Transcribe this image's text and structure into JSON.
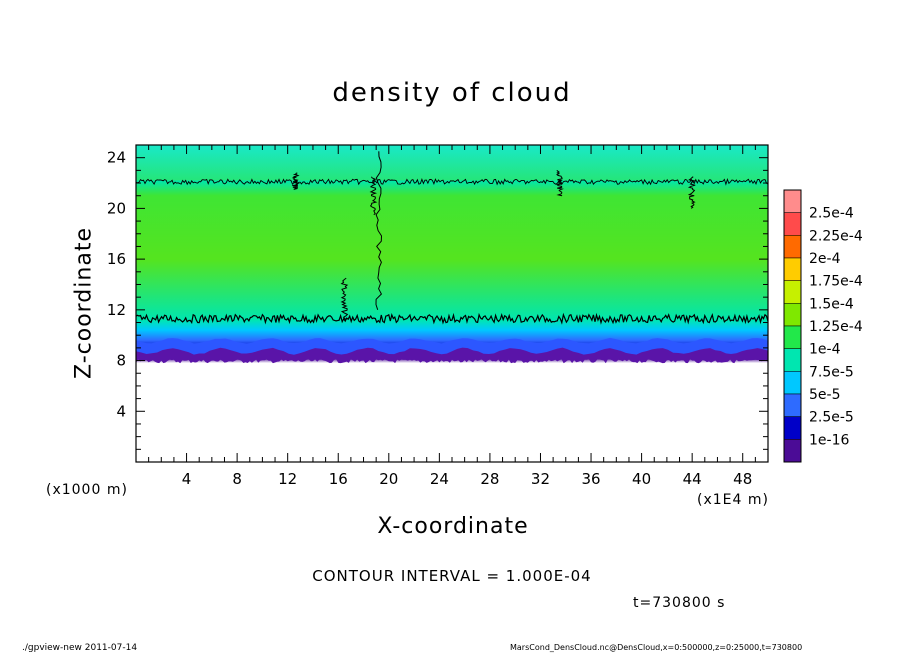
{
  "chart_data": {
    "type": "heatmap",
    "title": "density of cloud",
    "xlabel": "X-coordinate",
    "ylabel": "Z-coordinate",
    "x_unit": "(x1E4 m)",
    "y_unit": "(x1000 m)",
    "xlim": [
      0,
      50
    ],
    "ylim": [
      0,
      25
    ],
    "x_ticks": [
      4,
      8,
      12,
      16,
      20,
      24,
      28,
      32,
      36,
      40,
      44,
      48
    ],
    "y_ticks": [
      4,
      8,
      12,
      16,
      20,
      24
    ],
    "colorbar": {
      "labels": [
        "2.5e-4",
        "2.25e-4",
        "2e-4",
        "1.75e-4",
        "1.5e-4",
        "1.25e-4",
        "1e-4",
        "7.5e-5",
        "5e-5",
        "2.5e-5",
        "1e-16"
      ],
      "colors": [
        "#ff8c8c",
        "#ff4b4b",
        "#ff6a00",
        "#ffcc00",
        "#c6f000",
        "#7fe800",
        "#22e84a",
        "#00e6b0",
        "#00c8ff",
        "#2e6bff",
        "#0000c8",
        "#4b0c96"
      ]
    },
    "profile": [
      {
        "z": 0,
        "value": null
      },
      {
        "z": 7.8,
        "value": null
      },
      {
        "z": 8.2,
        "value": 1e-16
      },
      {
        "z": 8.9,
        "value": 2.5e-05
      },
      {
        "z": 9.6,
        "value": 5e-05
      },
      {
        "z": 10.4,
        "value": 7.5e-05
      },
      {
        "z": 11.2,
        "value": 0.0001
      },
      {
        "z": 16,
        "value": 0.000125
      },
      {
        "z": 21.0,
        "value": 0.00011
      },
      {
        "z": 22.2,
        "value": 0.0001
      },
      {
        "z": 24,
        "value": 8e-05
      },
      {
        "z": 25,
        "value": 7.5e-05
      }
    ],
    "contour_levels_z": [
      11.3,
      22.1
    ],
    "contour_interval_text": "CONTOUR INTERVAL = 1.000E-04",
    "time_text": "t=730800 s"
  },
  "footer": {
    "left": "./gpview-new  2011-07-14",
    "right": "MarsCond_DensCloud.nc@DensCloud,x=0:500000,z=0:25000,t=730800"
  }
}
